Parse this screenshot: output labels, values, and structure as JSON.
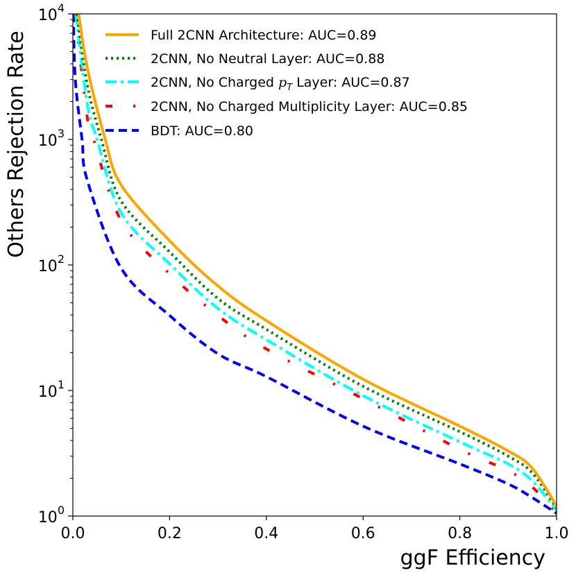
{
  "chart_data": {
    "type": "line",
    "title": "",
    "xlabel": "ggF Efficiency",
    "ylabel": "Others Rejection Rate",
    "xlim": [
      0.0,
      1.0
    ],
    "ylim": [
      1,
      10000
    ],
    "yscale": "log",
    "grid": false,
    "legend_position": "upper right (inside, top)",
    "x_ticks": [
      "0.0",
      "0.2",
      "0.4",
      "0.6",
      "0.8",
      "1.0"
    ],
    "y_ticks": [
      {
        "base": "10",
        "exp": "0",
        "value": 1
      },
      {
        "base": "10",
        "exp": "1",
        "value": 10
      },
      {
        "base": "10",
        "exp": "2",
        "value": 100
      },
      {
        "base": "10",
        "exp": "3",
        "value": 1000
      },
      {
        "base": "10",
        "exp": "4",
        "value": 10000
      }
    ],
    "series": [
      {
        "name": "Full 2CNN Architecture: AUC=0.89",
        "label_pre": "Full 2CNN Architecture: AUC=0.89",
        "auc": 0.89,
        "color": "#ffa500",
        "style": "solid",
        "x": [
          0.012,
          0.03,
          0.067,
          0.1,
          0.2,
          0.3,
          0.4,
          0.6,
          0.8,
          0.9,
          0.95,
          1.0
        ],
        "y": [
          10000,
          3700,
          1000,
          432,
          156,
          68,
          36,
          12.3,
          5.2,
          3.3,
          2.4,
          1.2
        ]
      },
      {
        "name": "2CNN, No Neutral Layer: AUC=0.88",
        "label_pre": "2CNN, No Neutral Layer: AUC=0.88",
        "auc": 0.88,
        "color": "#008000",
        "style": "dotted",
        "x": [
          0.008,
          0.03,
          0.059,
          0.1,
          0.2,
          0.3,
          0.4,
          0.6,
          0.8,
          0.9,
          0.95,
          1.0
        ],
        "y": [
          10000,
          2700,
          1000,
          322,
          127,
          54,
          30.7,
          10.8,
          4.7,
          3.0,
          2.2,
          1.15
        ]
      },
      {
        "name": "2CNN, No Charged pT Layer: AUC=0.87",
        "label_pre": "2CNN, No Charged ",
        "label_math": "p",
        "label_sub": "T",
        "label_post": " Layer: AUC=0.87",
        "auc": 0.87,
        "color": "#00ffff",
        "style": "dashdot",
        "x": [
          0.006,
          0.03,
          0.05,
          0.1,
          0.2,
          0.3,
          0.4,
          0.6,
          0.8,
          0.9,
          0.95,
          1.0
        ],
        "y": [
          10000,
          1900,
          1000,
          259,
          102,
          45,
          25.4,
          9.1,
          3.9,
          2.6,
          1.9,
          1.1
        ]
      },
      {
        "name": "2CNN, No Charged Multiplicity Layer: AUC=0.85",
        "label_pre": "2CNN, No Charged Multiplicity Layer: AUC=0.85",
        "auc": 0.85,
        "color": "#ff0000",
        "style": "sparse-dashdot",
        "x": [
          0.005,
          0.03,
          0.043,
          0.1,
          0.2,
          0.3,
          0.4,
          0.6,
          0.8,
          0.9,
          0.95,
          1.0
        ],
        "y": [
          10000,
          1480,
          1000,
          225,
          85,
          39.6,
          21.4,
          8.6,
          3.4,
          2.3,
          1.7,
          1.05
        ]
      },
      {
        "name": "BDT: AUC=0.80",
        "label_pre": "BDT: AUC=0.80",
        "auc": 0.8,
        "color": "#0000ff",
        "style": "dashed",
        "x": [
          0.001,
          0.005,
          0.019,
          0.03,
          0.1,
          0.2,
          0.3,
          0.4,
          0.6,
          0.8,
          0.9,
          0.95,
          1.0
        ],
        "y": [
          10000,
          3000,
          1000,
          470,
          94,
          39.6,
          19.6,
          12.9,
          5.2,
          2.6,
          1.8,
          1.4,
          1.05
        ]
      }
    ]
  }
}
